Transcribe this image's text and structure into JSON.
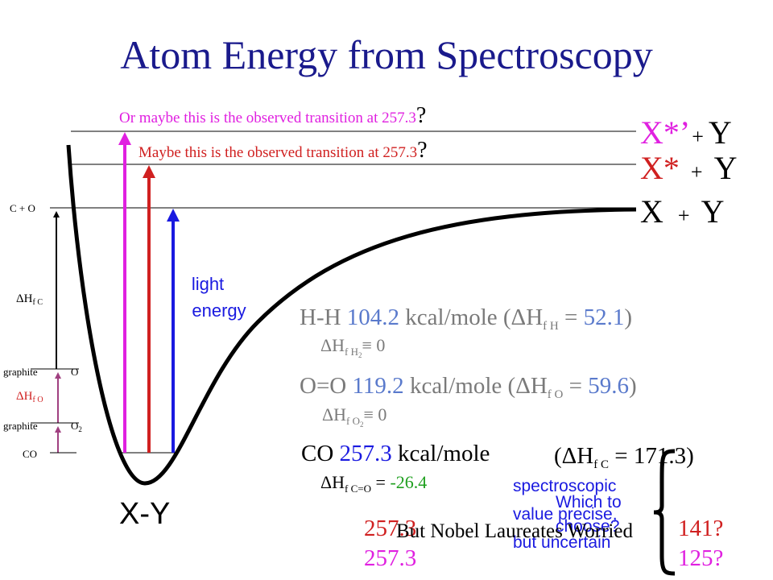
{
  "title": "Atom Energy from Spectroscopy",
  "transitions": [
    {
      "text": "Or maybe this is the observed transition at 257.3",
      "mark": "?"
    },
    {
      "text": "Maybe this is the observed transition at 257.3",
      "mark": "?"
    }
  ],
  "states": [
    {
      "atom": "X*’",
      "plus": "+",
      "partner": "Y"
    },
    {
      "atom": "X*",
      "plus": "+",
      "partner": "Y"
    },
    {
      "atom": "X",
      "plus": "+",
      "partner": "Y"
    }
  ],
  "molecule": "X-Y",
  "light": [
    "light",
    "energy"
  ],
  "ladder": {
    "top": "C + O",
    "dhc": {
      "delta": "ΔH",
      "sub": "f C"
    },
    "graphite1": "graphite",
    "o": "O",
    "dho": {
      "delta": "ΔH",
      "sub": "f O"
    },
    "graphite2": "graphite",
    "o2": {
      "base": "O",
      "sub": "2"
    },
    "co": "CO"
  },
  "bonds": [
    {
      "name": "H-H",
      "energy": "104.2",
      "unit": "kcal/mole",
      "open": "(ΔH",
      "sub": "f H",
      "eq": "=",
      "value": "52.1",
      "close": ")",
      "note": {
        "delta": "ΔH",
        "sub": "f H",
        "sub2": "2",
        "rest": "≡ 0"
      }
    },
    {
      "name": "O=O",
      "energy": "119.2",
      "unit": "kcal/mole",
      "open": "(ΔH",
      "sub": "f O",
      "eq": "=",
      "value": "59.6",
      "close": ")",
      "note": {
        "delta": "ΔH",
        "sub": "f O",
        "sub2": "2",
        "rest": "≡ 0"
      }
    }
  ],
  "co": {
    "name": "CO",
    "energy": "257.3",
    "unit": "kcal/mole",
    "open": "(ΔH",
    "sub": "f C",
    "rest": "= 171.3)",
    "note": {
      "delta": "ΔH",
      "sub": "f C=O",
      "eq": "=",
      "value": "-26.4"
    }
  },
  "spectroscopic": [
    "spectroscopic",
    "value precise,",
    "but uncertain"
  ],
  "which": [
    "Which to",
    "choose?"
  ],
  "choices": {
    "red": "257.3",
    "magenta": "257.3",
    "red_alt": "141?",
    "magenta_alt": "125?"
  },
  "nobel": "But Nobel Laureates Worried"
}
